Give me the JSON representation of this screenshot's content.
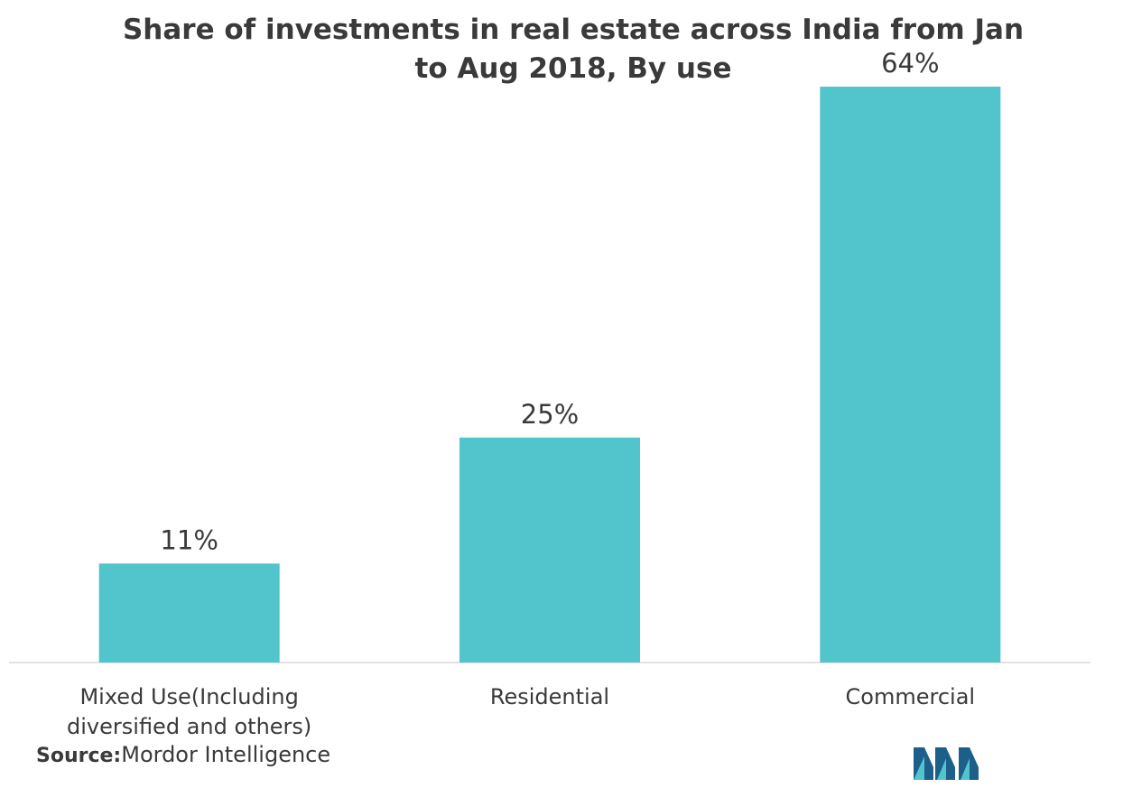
{
  "chart_data": {
    "type": "bar",
    "title_lines": [
      "Share of investments in real estate across India from Jan",
      "to Aug 2018, By use"
    ],
    "categories": [
      [
        "Mixed Use(Including",
        "diversified and others)"
      ],
      [
        "Residential"
      ],
      [
        "Commercial"
      ]
    ],
    "values": [
      11,
      25,
      64
    ],
    "data_labels": [
      "11%",
      "25%",
      "64%"
    ],
    "ylim": [
      0,
      64
    ],
    "grid": false,
    "legend": "none",
    "bar_color": "#52c4cb"
  },
  "source": {
    "label": "Source:",
    "text": "Mordor Intelligence"
  },
  "logo": {
    "icon": "mordor-intelligence-logo",
    "colors": [
      "#1b5f8a",
      "#52c4cb"
    ]
  }
}
